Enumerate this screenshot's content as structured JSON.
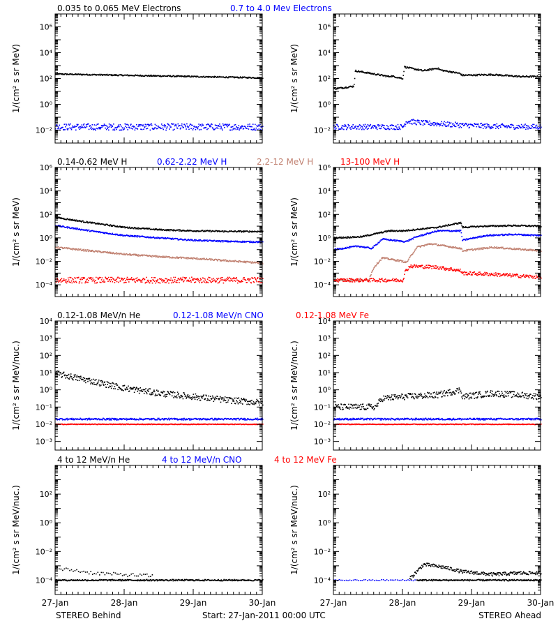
{
  "colors": {
    "black": "#000000",
    "blue": "#0000ff",
    "tan": "#c08070",
    "red": "#ff0000",
    "axis": "#000000"
  },
  "footer": {
    "left": "STEREO Behind",
    "center": "Start: 27-Jan-2011 00:00 UTC",
    "right": "STEREO Ahead"
  },
  "chart_data": [
    {
      "type": "scatter",
      "row": 1,
      "legend": [
        {
          "text": "0.035 to 0.065 MeV Electrons",
          "color": "#000000"
        },
        {
          "text": "0.7 to 4.0 Mev Electrons",
          "color": "#0000ff"
        }
      ],
      "ylabel": "1/(cm² s sr MeV)",
      "yscale": "log",
      "ylim_exp": [
        -3,
        7
      ],
      "yticks": [
        {
          "exp": -2,
          "label": "10⁻²"
        },
        {
          "exp": 0,
          "label": "10⁰"
        },
        {
          "exp": 2,
          "label": "10²"
        },
        {
          "exp": 4,
          "label": "10⁴"
        },
        {
          "exp": 6,
          "label": "10⁶"
        }
      ],
      "panels": [
        {
          "spacecraft": "STEREO Behind",
          "series": [
            {
              "color": "#000000",
              "scatter": 0.05,
              "x": [
                0,
                3
              ],
              "log10_y": [
                2.35,
                2.05
              ]
            },
            {
              "color": "#0000ff",
              "scatter": 0.25,
              "x": [
                0,
                3
              ],
              "log10_y": [
                -1.75,
                -1.75
              ]
            }
          ]
        },
        {
          "spacecraft": "STEREO Ahead",
          "series": [
            {
              "color": "#000000",
              "scatter": 0.06,
              "x": [
                0,
                0.29,
                0.31,
                0.8,
                0.82,
                1.0,
                1.02,
                1.29,
                1.4,
                1.5,
                1.55,
                1.82,
                1.86,
                2.3,
                2.7,
                3.0
              ],
              "log10_y": [
                1.2,
                1.4,
                2.6,
                2.15,
                2.2,
                2.0,
                2.9,
                2.6,
                2.7,
                2.8,
                2.65,
                2.4,
                2.25,
                2.3,
                2.15,
                2.15
              ]
            },
            {
              "color": "#0000ff",
              "scatter": 0.2,
              "x": [
                0,
                1.0,
                1.05,
                1.3,
                1.5,
                1.8,
                2.3,
                3.0
              ],
              "log10_y": [
                -1.75,
                -1.75,
                -1.3,
                -1.45,
                -1.5,
                -1.6,
                -1.7,
                -1.75
              ]
            }
          ]
        }
      ]
    },
    {
      "type": "scatter",
      "row": 2,
      "legend": [
        {
          "text": "0.14-0.62 MeV H",
          "color": "#000000"
        },
        {
          "text": "0.62-2.22 MeV H",
          "color": "#0000ff"
        },
        {
          "text": "2.2-12 MeV H",
          "color": "#c08070"
        },
        {
          "text": "13-100 MeV H",
          "color": "#ff0000"
        }
      ],
      "ylabel": "1/(cm² s sr MeV)",
      "yscale": "log",
      "ylim_exp": [
        -5,
        6
      ],
      "yticks": [
        {
          "exp": -4,
          "label": "10⁻⁴"
        },
        {
          "exp": -2,
          "label": "10⁻²"
        },
        {
          "exp": 0,
          "label": "10⁰"
        },
        {
          "exp": 2,
          "label": "10²"
        },
        {
          "exp": 4,
          "label": "10⁴"
        },
        {
          "exp": 6,
          "label": "10⁶"
        }
      ],
      "panels": [
        {
          "spacecraft": "STEREO Behind",
          "series": [
            {
              "color": "#000000",
              "scatter": 0.06,
              "x": [
                0,
                0.5,
                1.0,
                1.5,
                2.0,
                2.5,
                3.0
              ],
              "log10_y": [
                1.75,
                1.3,
                0.9,
                0.7,
                0.6,
                0.55,
                0.55
              ]
            },
            {
              "color": "#0000ff",
              "scatter": 0.06,
              "x": [
                0,
                0.5,
                1.0,
                1.5,
                2.0,
                2.5,
                3.0
              ],
              "log10_y": [
                1.05,
                0.6,
                0.2,
                0.0,
                -0.2,
                -0.3,
                -0.35
              ]
            },
            {
              "color": "#c08070",
              "scatter": 0.07,
              "x": [
                0,
                0.5,
                1.0,
                1.5,
                2.0,
                2.5,
                3.0
              ],
              "log10_y": [
                -0.8,
                -1.1,
                -1.4,
                -1.6,
                -1.75,
                -1.95,
                -2.15
              ]
            },
            {
              "color": "#ff0000",
              "scatter": 0.25,
              "x": [
                0,
                3.0
              ],
              "log10_y": [
                -3.6,
                -3.6
              ]
            }
          ]
        },
        {
          "spacecraft": "STEREO Ahead",
          "series": [
            {
              "color": "#000000",
              "scatter": 0.06,
              "x": [
                0,
                0.4,
                0.8,
                1.0,
                1.5,
                1.84,
                1.86,
                2.2,
                2.6,
                3.0
              ],
              "log10_y": [
                0.0,
                0.1,
                0.6,
                0.6,
                0.9,
                1.3,
                0.9,
                1.0,
                1.05,
                1.0
              ]
            },
            {
              "color": "#0000ff",
              "scatter": 0.06,
              "x": [
                0,
                0.35,
                0.55,
                0.7,
                1.0,
                1.05,
                1.2,
                1.5,
                1.84,
                1.86,
                2.2,
                2.6,
                3.0
              ],
              "log10_y": [
                -1.0,
                -0.7,
                -0.9,
                -0.1,
                -0.3,
                -0.3,
                0.1,
                0.6,
                0.6,
                -0.2,
                0.2,
                0.3,
                0.2
              ]
            },
            {
              "color": "#c08070",
              "scatter": 0.07,
              "x": [
                0,
                0.5,
                0.58,
                0.7,
                1.0,
                1.05,
                1.2,
                1.4,
                1.84,
                1.86,
                2.3,
                3.0
              ],
              "log10_y": [
                -3.6,
                -3.6,
                -2.5,
                -1.7,
                -2.0,
                -2.1,
                -0.8,
                -0.5,
                -0.9,
                -1.1,
                -0.8,
                -1.1
              ]
            },
            {
              "color": "#ff0000",
              "scatter": 0.15,
              "x": [
                0,
                1.0,
                1.03,
                1.1,
                1.5,
                1.84,
                1.86,
                2.3,
                3.0
              ],
              "log10_y": [
                -3.6,
                -3.6,
                -2.9,
                -2.4,
                -2.5,
                -2.8,
                -3.0,
                -3.1,
                -3.35
              ]
            }
          ]
        }
      ]
    },
    {
      "type": "scatter",
      "row": 3,
      "legend": [
        {
          "text": "0.12-1.08 MeV/n He",
          "color": "#000000"
        },
        {
          "text": "0.12-1.08 MeV/n CNO",
          "color": "#0000ff"
        },
        {
          "text": "0.12-1.08 MeV Fe",
          "color": "#ff0000"
        }
      ],
      "ylabel": "1/(cm² s sr MeV/nuc.)",
      "yscale": "log",
      "ylim_exp": [
        -3.5,
        4
      ],
      "yticks": [
        {
          "exp": -3,
          "label": "10⁻³"
        },
        {
          "exp": -2,
          "label": "10⁻²"
        },
        {
          "exp": -1,
          "label": "10⁻¹"
        },
        {
          "exp": 0,
          "label": "10⁰"
        },
        {
          "exp": 1,
          "label": "10¹"
        },
        {
          "exp": 2,
          "label": "10²"
        },
        {
          "exp": 3,
          "label": "10³"
        },
        {
          "exp": 4,
          "label": "10⁴"
        }
      ],
      "panels": [
        {
          "spacecraft": "STEREO Behind",
          "series": [
            {
              "color": "#000000",
              "scatter": 0.18,
              "x": [
                0,
                0.3,
                0.7,
                1.0,
                1.5,
                2.0,
                2.5,
                3.0
              ],
              "log10_y": [
                0.95,
                0.7,
                0.35,
                0.1,
                -0.2,
                -0.4,
                -0.6,
                -0.75
              ]
            },
            {
              "color": "#0000ff",
              "scatter": 0.05,
              "x": [
                0,
                3.0
              ],
              "log10_y": [
                -1.7,
                -1.7
              ]
            },
            {
              "color": "#ff0000",
              "scatter": 0.02,
              "x": [
                0,
                3.0
              ],
              "log10_y": [
                -2.0,
                -2.0
              ]
            }
          ]
        },
        {
          "spacecraft": "STEREO Ahead",
          "series": [
            {
              "color": "#000000",
              "scatter": 0.18,
              "x": [
                0,
                0.6,
                0.7,
                1.0,
                1.5,
                1.84,
                1.86,
                2.3,
                2.7,
                3.0
              ],
              "log10_y": [
                -1.0,
                -1.0,
                -0.5,
                -0.4,
                -0.3,
                0.0,
                -0.4,
                -0.2,
                -0.3,
                -0.4
              ]
            },
            {
              "color": "#0000ff",
              "scatter": 0.05,
              "x": [
                0,
                3.0
              ],
              "log10_y": [
                -1.7,
                -1.7
              ]
            },
            {
              "color": "#ff0000",
              "scatter": 0.02,
              "x": [
                0,
                3.0
              ],
              "log10_y": [
                -2.0,
                -2.0
              ]
            }
          ]
        }
      ]
    },
    {
      "type": "scatter",
      "row": 4,
      "legend": [
        {
          "text": "4 to 12 MeV/n He",
          "color": "#000000"
        },
        {
          "text": "4 to 12 MeV/n CNO",
          "color": "#0000ff"
        },
        {
          "text": "4 to 12 MeV Fe",
          "color": "#ff0000"
        }
      ],
      "ylabel": "1/(cm² s sr MeV/nuc.)",
      "yscale": "log",
      "ylim_exp": [
        -5,
        4
      ],
      "yticks": [
        {
          "exp": -4,
          "label": "10⁻⁴"
        },
        {
          "exp": -2,
          "label": "10⁻²"
        },
        {
          "exp": 0,
          "label": "10⁰"
        },
        {
          "exp": 2,
          "label": "10²"
        }
      ],
      "xticks": [
        "27-Jan",
        "28-Jan",
        "29-Jan",
        "30-Jan"
      ],
      "panels": [
        {
          "spacecraft": "STEREO Behind",
          "series": [
            {
              "color": "#000000",
              "scatter": 0.05,
              "x": [
                0,
                3.0
              ],
              "log10_y": [
                -4.0,
                -4.0
              ]
            },
            {
              "color": "#000000",
              "scatter": 0.12,
              "x": [
                0,
                0.25,
                0.55,
                0.9,
                1.4
              ],
              "log10_y": [
                -3.2,
                -3.3,
                -3.5,
                -3.6,
                -3.7
              ],
              "sparse": true
            }
          ]
        },
        {
          "spacecraft": "STEREO Ahead",
          "series": [
            {
              "color": "#0000ff",
              "scatter": 0.04,
              "x": [
                0,
                1.2
              ],
              "log10_y": [
                -4.0,
                -4.0
              ],
              "sparse": true
            },
            {
              "color": "#000000",
              "scatter": 0.05,
              "x": [
                1.2,
                3.0
              ],
              "log10_y": [
                -4.0,
                -4.0
              ]
            },
            {
              "color": "#000000",
              "scatter": 0.12,
              "x": [
                1.1,
                1.3,
                1.6,
                1.85,
                2.3,
                2.7,
                3.0
              ],
              "log10_y": [
                -3.9,
                -2.9,
                -3.1,
                -3.4,
                -3.6,
                -3.5,
                -3.5
              ]
            }
          ]
        }
      ]
    }
  ]
}
